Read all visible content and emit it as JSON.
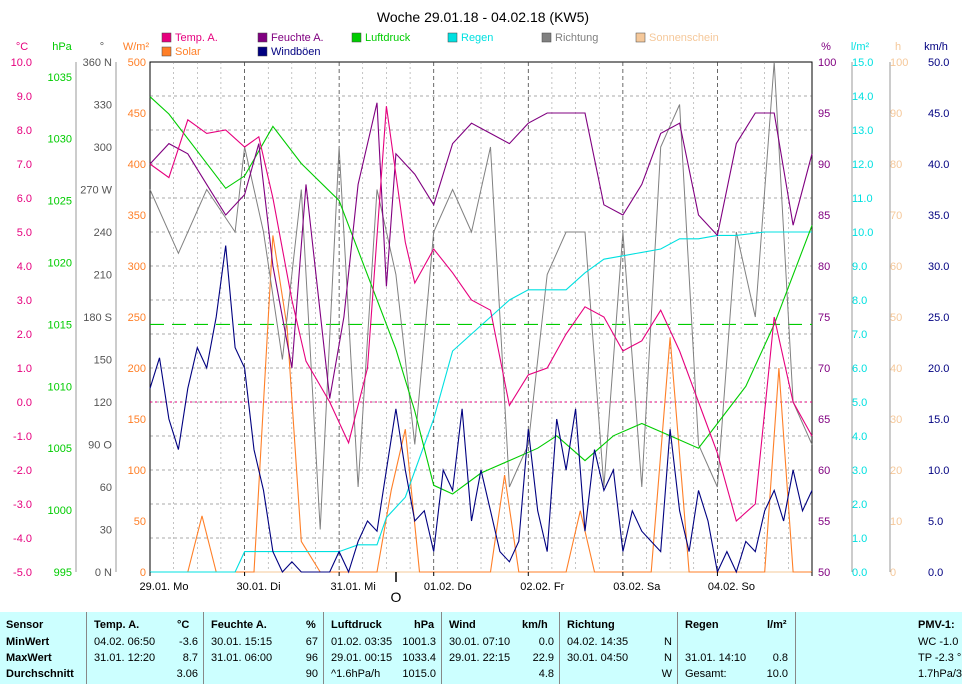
{
  "chart_data": {
    "type": "line",
    "title": "Woche 29.01.18 - 04.02.18 (KW5)",
    "x_days": [
      "29.01. Mo",
      "30.01. Di",
      "31.01. Mi",
      "01.02. Do",
      "02.02. Fr",
      "03.02. Sa",
      "04.02. So"
    ],
    "legend": [
      {
        "name": "Temp. A.",
        "color": "#e6007e"
      },
      {
        "name": "Feuchte A.",
        "color": "#800080"
      },
      {
        "name": "Luftdruck",
        "color": "#00cc00"
      },
      {
        "name": "Regen",
        "color": "#00e0e0"
      },
      {
        "name": "Richtung",
        "color": "#808080"
      },
      {
        "name": "Sonnenschein",
        "color": "#f5c89a"
      },
      {
        "name": "Solar",
        "color": "#ff7f27"
      },
      {
        "name": "Windböen",
        "color": "#000080"
      }
    ],
    "axes": {
      "temp": {
        "unit": "°C",
        "color": "#e6007e",
        "ticks": [
          "10.0",
          "9.0",
          "8.0",
          "7.0",
          "6.0",
          "5.0",
          "4.0",
          "3.0",
          "2.0",
          "1.0",
          "0.0",
          "-1.0",
          "-2.0",
          "-3.0",
          "-4.0",
          "-5.0"
        ],
        "ylim": [
          -5,
          10
        ]
      },
      "pressure": {
        "unit": "hPa",
        "color": "#00cc00",
        "ticks": [
          "1035",
          "1030",
          "1025",
          "1020",
          "1015",
          "1010",
          "1005",
          "1000",
          "995"
        ],
        "ylim": [
          995,
          1036.2
        ]
      },
      "direction": {
        "unit": "°",
        "color": "#555555",
        "ticks": [
          "360 N",
          "330",
          "300",
          "270 W",
          "240",
          "210",
          "180 S",
          "150",
          "120",
          "90 O",
          "60",
          "30",
          "0 N"
        ],
        "ylim": [
          0,
          360
        ]
      },
      "solar": {
        "unit": "W/m²",
        "color": "#ff7f27",
        "ticks": [
          "500",
          "450",
          "400",
          "350",
          "300",
          "250",
          "200",
          "150",
          "100",
          "50",
          "0"
        ],
        "ylim": [
          0,
          500
        ]
      },
      "humidity": {
        "unit": "%",
        "color": "#800080",
        "ticks": [
          "100",
          "95",
          "90",
          "85",
          "80",
          "75",
          "70",
          "65",
          "60",
          "55",
          "50"
        ],
        "ylim": [
          50,
          100
        ]
      },
      "rain": {
        "unit": "l/m²",
        "color": "#00e0e0",
        "ticks": [
          "15.0",
          "14.0",
          "13.0",
          "12.0",
          "11.0",
          "10.0",
          "9.0",
          "8.0",
          "7.0",
          "6.0",
          "5.0",
          "4.0",
          "3.0",
          "2.0",
          "1.0",
          "0.0"
        ],
        "ylim": [
          0,
          15
        ]
      },
      "sunshine": {
        "unit": "h",
        "color": "#f5c89a",
        "ticks": [
          "100",
          "90",
          "80",
          "70",
          "60",
          "50",
          "40",
          "30",
          "20",
          "10",
          "0"
        ],
        "ylim": [
          0,
          100
        ]
      },
      "wind": {
        "unit": "km/h",
        "color": "#000080",
        "ticks": [
          "50.0",
          "45.0",
          "40.0",
          "35.0",
          "30.0",
          "25.0",
          "20.0",
          "15.0",
          "10.0",
          "5.0",
          "0.0"
        ],
        "ylim": [
          0,
          50
        ]
      }
    },
    "reference_lines": {
      "temp_zero": 0.0,
      "pressure_mean": 1015.0
    },
    "series": [
      {
        "name": "Temp. A.",
        "unit": "°C",
        "x_days": [
          0,
          0.2,
          0.4,
          0.6,
          0.8,
          1.0,
          1.15,
          1.3,
          1.5,
          1.65,
          1.9,
          2.1,
          2.3,
          2.5,
          2.7,
          2.8,
          3.0,
          3.2,
          3.4,
          3.6,
          3.8,
          4.0,
          4.2,
          4.4,
          4.6,
          4.8,
          5.0,
          5.2,
          5.4,
          5.6,
          5.8,
          6.0,
          6.2,
          6.4,
          6.6,
          6.8,
          7.0
        ],
        "values": [
          7.0,
          6.6,
          8.3,
          7.9,
          8.0,
          7.5,
          7.8,
          6.0,
          3.0,
          1.2,
          0.0,
          -1.2,
          1.0,
          8.7,
          4.7,
          3.5,
          4.5,
          3.8,
          3.0,
          2.7,
          -0.1,
          0.8,
          1.0,
          2.0,
          2.8,
          2.5,
          1.5,
          1.8,
          2.7,
          1.5,
          0.0,
          -1.5,
          -3.5,
          -3.0,
          2.5,
          0.0,
          -1.0
        ]
      },
      {
        "name": "Feuchte A.",
        "unit": "%",
        "x_days": [
          0,
          0.2,
          0.4,
          0.6,
          0.8,
          1.0,
          1.15,
          1.3,
          1.5,
          1.65,
          1.9,
          2.05,
          2.2,
          2.4,
          2.5,
          2.6,
          2.8,
          3.0,
          3.2,
          3.4,
          3.6,
          3.8,
          4.0,
          4.2,
          4.4,
          4.6,
          4.8,
          5.0,
          5.2,
          5.4,
          5.6,
          5.8,
          6.0,
          6.2,
          6.4,
          6.6,
          6.8,
          7.0
        ],
        "values": [
          90,
          92,
          91,
          88,
          85,
          87,
          92,
          80,
          70,
          88,
          67,
          75,
          88,
          96,
          78,
          91,
          89,
          86,
          92,
          94,
          93,
          92,
          94,
          95,
          95,
          95,
          86,
          85,
          88,
          93,
          94,
          85,
          83,
          92,
          95,
          95,
          84,
          91
        ]
      },
      {
        "name": "Luftdruck",
        "unit": "hPa",
        "x_days": [
          0,
          0.2,
          0.5,
          0.8,
          1.0,
          1.3,
          1.6,
          2.0,
          2.3,
          2.6,
          2.8,
          3.0,
          3.2,
          3.5,
          3.8,
          4.1,
          4.3,
          4.6,
          4.9,
          5.2,
          5.5,
          5.8,
          6.0,
          6.3,
          6.6,
          6.8,
          7.0
        ],
        "values": [
          1033.4,
          1032,
          1029,
          1026,
          1027,
          1031,
          1028,
          1025,
          1019,
          1013,
          1008,
          1002,
          1001.3,
          1003,
          1004,
          1005,
          1006,
          1004,
          1006,
          1007,
          1006,
          1005,
          1007,
          1010,
          1015,
          1019,
          1023
        ]
      },
      {
        "name": "Regen",
        "unit": "l/m²",
        "x_days": [
          0,
          0.9,
          1.0,
          1.6,
          2.0,
          2.2,
          2.4,
          2.5,
          2.7,
          3.0,
          3.2,
          3.4,
          3.6,
          3.8,
          4.0,
          4.2,
          4.4,
          4.6,
          4.8,
          5.0,
          5.2,
          5.4,
          5.6,
          5.8,
          6.0,
          6.2,
          6.5,
          7.0
        ],
        "values": [
          0.0,
          0.0,
          0.6,
          0.6,
          0.6,
          0.8,
          0.8,
          1.6,
          2.2,
          4.5,
          6.5,
          7.0,
          7.5,
          8.0,
          8.3,
          8.3,
          8.3,
          8.8,
          9.2,
          9.3,
          9.4,
          9.5,
          9.8,
          9.8,
          9.9,
          9.9,
          10.0,
          10.0
        ]
      },
      {
        "name": "Richtung",
        "unit": "°",
        "x_days": [
          0,
          0.3,
          0.6,
          0.9,
          1.0,
          1.2,
          1.4,
          1.6,
          1.8,
          2.0,
          2.2,
          2.4,
          2.6,
          2.8,
          3.0,
          3.2,
          3.4,
          3.6,
          3.8,
          4.0,
          4.2,
          4.4,
          4.6,
          4.8,
          5.0,
          5.2,
          5.4,
          5.6,
          5.8,
          6.0,
          6.2,
          6.4,
          6.6,
          6.8,
          7.0
        ],
        "values": [
          270,
          225,
          270,
          240,
          300,
          240,
          150,
          270,
          30,
          300,
          60,
          270,
          210,
          90,
          240,
          270,
          240,
          300,
          60,
          90,
          210,
          240,
          240,
          60,
          240,
          60,
          300,
          330,
          90,
          60,
          240,
          180,
          360,
          120,
          90
        ]
      },
      {
        "name": "Solar",
        "unit": "W/m²",
        "x_days": [
          0,
          0.4,
          0.55,
          0.7,
          0.9,
          1.1,
          1.3,
          1.45,
          1.6,
          1.8,
          2.1,
          2.4,
          2.55,
          2.7,
          2.85,
          3.1,
          3.4,
          3.6,
          3.75,
          3.9,
          4.2,
          4.4,
          4.55,
          4.7,
          4.9,
          5.1,
          5.3,
          5.5,
          5.7,
          5.9,
          6.1,
          6.3,
          6.5,
          6.65,
          6.8,
          7.0
        ],
        "values": [
          0,
          0,
          55,
          0,
          0,
          0,
          330,
          240,
          30,
          0,
          0,
          0,
          80,
          140,
          0,
          0,
          0,
          0,
          95,
          0,
          0,
          0,
          60,
          0,
          0,
          0,
          0,
          230,
          0,
          0,
          0,
          0,
          0,
          200,
          0,
          0
        ]
      },
      {
        "name": "Windböen",
        "unit": "km/h",
        "x_days": [
          0,
          0.1,
          0.2,
          0.3,
          0.4,
          0.5,
          0.6,
          0.7,
          0.8,
          0.9,
          1.0,
          1.1,
          1.2,
          1.3,
          1.4,
          1.5,
          1.6,
          1.7,
          1.8,
          1.9,
          2.0,
          2.1,
          2.2,
          2.3,
          2.4,
          2.5,
          2.6,
          2.7,
          2.8,
          2.9,
          3.0,
          3.1,
          3.2,
          3.3,
          3.4,
          3.5,
          3.6,
          3.7,
          3.8,
          3.9,
          4.0,
          4.1,
          4.2,
          4.3,
          4.4,
          4.5,
          4.6,
          4.7,
          4.8,
          4.9,
          5.0,
          5.1,
          5.2,
          5.3,
          5.4,
          5.5,
          5.6,
          5.7,
          5.8,
          5.9,
          6.0,
          6.1,
          6.2,
          6.3,
          6.4,
          6.5,
          6.6,
          6.7,
          6.8,
          6.9,
          7.0
        ],
        "values": [
          18,
          21,
          15,
          12,
          18,
          22,
          20,
          25,
          32,
          22,
          20,
          12,
          8,
          2,
          0,
          1,
          0,
          0,
          0,
          0,
          2,
          0,
          3,
          5,
          4,
          10,
          16,
          10,
          5,
          6,
          2,
          10,
          8,
          16,
          5,
          10,
          6,
          2,
          1,
          3,
          14,
          6,
          2,
          15,
          10,
          16,
          4,
          12,
          8,
          10,
          2,
          6,
          4,
          3,
          2,
          14,
          6,
          2,
          8,
          5,
          0,
          2,
          0,
          3,
          2,
          6,
          8,
          5,
          10,
          6,
          8
        ]
      },
      {
        "name": "Sonnenschein",
        "unit": "h",
        "x_days": [
          0,
          7
        ],
        "values": [
          0,
          0
        ]
      }
    ]
  },
  "stats": {
    "row_labels": [
      "Sensor",
      "MinWert",
      "MaxWert",
      "Durchschnitt"
    ],
    "temp": {
      "header": "Temp. A.",
      "unit": "°C",
      "min_time": "04.02.  06:50",
      "min": "-3.6",
      "max_time": "31.01.  12:20",
      "max": "8.7",
      "avg": "3.06"
    },
    "humidity": {
      "header": "Feuchte A.",
      "unit": "%",
      "min_time": "30.01.  15:15",
      "min": "67",
      "max_time": "31.01.  06:00",
      "max": "96",
      "avg": "90"
    },
    "pressure": {
      "header": "Luftdruck",
      "unit": "hPa",
      "min_time": "01.02.  03:35",
      "min": "1001.3",
      "max_time": "29.01.  00:15",
      "max": "1033.4",
      "avg_label": "^1.6hPa/h",
      "avg": "1015.0"
    },
    "wind": {
      "header": "Wind",
      "unit": "km/h",
      "min_time": "30.01.  07:10",
      "min": "0.0",
      "max_time": "29.01.  22:15",
      "max": "22.9",
      "avg": "4.8"
    },
    "direction": {
      "header": "Richtung",
      "min_time": "04.02.  14:35",
      "min": "N",
      "max_time": "30.01.  04:50",
      "max": "N",
      "avg": "W"
    },
    "rain": {
      "header": "Regen",
      "unit": "l/m²",
      "max_time": "31.01.  14:10",
      "max": "0.8",
      "total_label": "Gesamt:",
      "total": "10.0"
    },
    "pmv": {
      "header": "PMV-1:",
      "line1": "WC -1.0",
      "line2": "TP -2.3 °",
      "line3": "1.7hPa/3"
    }
  }
}
